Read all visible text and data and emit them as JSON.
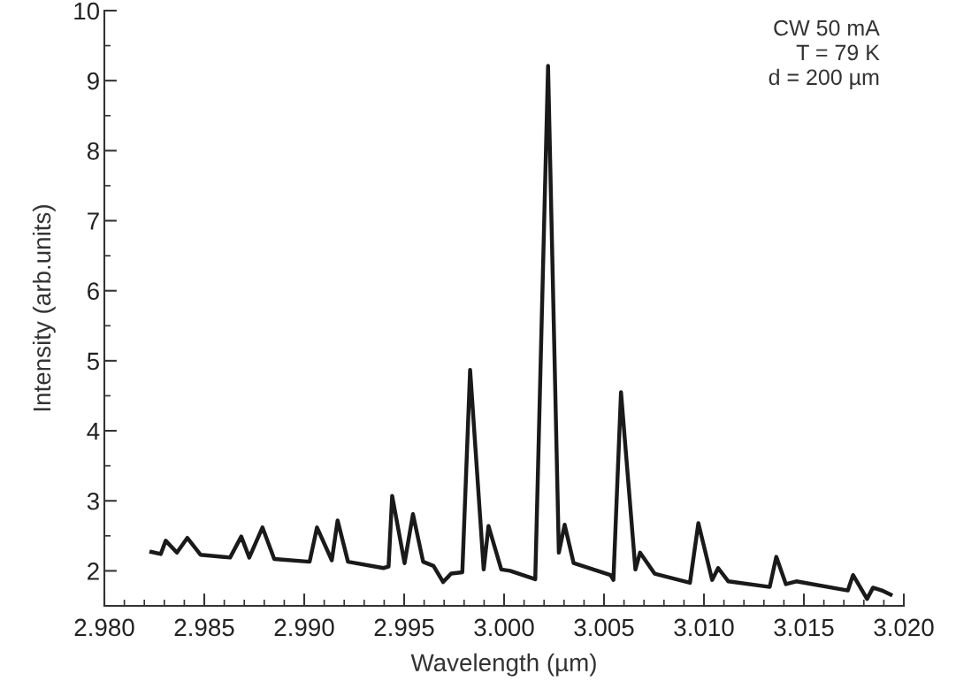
{
  "chart_data": {
    "type": "line",
    "xlabel": "Wavelength (µm)",
    "ylabel": "Intensity (arb.units)",
    "annotations": [
      "CW 50 mA\nT = 79 K\nd = 200 µm"
    ],
    "xlim": [
      2.98,
      3.02
    ],
    "xticks": [
      {
        "value": 2.98,
        "label": "2.980"
      },
      {
        "value": 2.985,
        "label": "2.985"
      },
      {
        "value": 2.99,
        "label": "2.990"
      },
      {
        "value": 2.995,
        "label": "2.995"
      },
      {
        "value": 3.0,
        "label": "3.000"
      },
      {
        "value": 3.005,
        "label": "3.005"
      },
      {
        "value": 3.01,
        "label": "3.010"
      },
      {
        "value": 3.015,
        "label": "3.015"
      },
      {
        "value": 3.02,
        "label": "3.020"
      }
    ],
    "ylim": [
      1.5,
      10
    ],
    "yticks": [
      2,
      3,
      4,
      5,
      6,
      7,
      8,
      9,
      10
    ],
    "grid": false,
    "marker": "none",
    "line_style": "solid",
    "series": [
      {
        "color": "#1a1a1a",
        "x": [
          2.98235,
          2.98282,
          2.98307,
          2.98363,
          2.98415,
          2.98481,
          2.98629,
          2.98685,
          2.98725,
          2.98791,
          2.9885,
          2.99027,
          2.99064,
          2.99138,
          2.99167,
          2.99219,
          2.99396,
          2.99422,
          2.9944,
          2.99502,
          2.99544,
          2.99595,
          2.99647,
          2.99695,
          2.99735,
          2.99791,
          2.9983,
          2.99898,
          2.99922,
          2.99986,
          3.0003,
          3.00156,
          3.0022,
          3.00274,
          3.00303,
          3.00348,
          3.00532,
          3.00547,
          3.00585,
          3.00657,
          3.0068,
          3.00753,
          3.0093,
          3.00972,
          3.01041,
          3.01071,
          3.01122,
          3.01329,
          3.01362,
          3.0141,
          3.01462,
          3.0172,
          3.01746,
          3.01816,
          3.01846,
          3.0189,
          3.01934
        ],
        "values": [
          2.27,
          2.24,
          2.43,
          2.26,
          2.47,
          2.23,
          2.19,
          2.49,
          2.19,
          2.62,
          2.17,
          2.13,
          2.62,
          2.15,
          2.72,
          2.13,
          2.04,
          2.06,
          3.07,
          2.11,
          2.81,
          2.13,
          2.07,
          1.84,
          1.96,
          1.98,
          4.87,
          2.02,
          2.64,
          2.02,
          2.0,
          1.88,
          9.21,
          2.26,
          2.66,
          2.11,
          1.94,
          1.87,
          4.55,
          2.02,
          2.26,
          1.96,
          1.83,
          2.68,
          1.87,
          2.04,
          1.85,
          1.77,
          2.2,
          1.81,
          1.85,
          1.72,
          1.94,
          1.6,
          1.76,
          1.72,
          1.66
        ]
      }
    ]
  }
}
